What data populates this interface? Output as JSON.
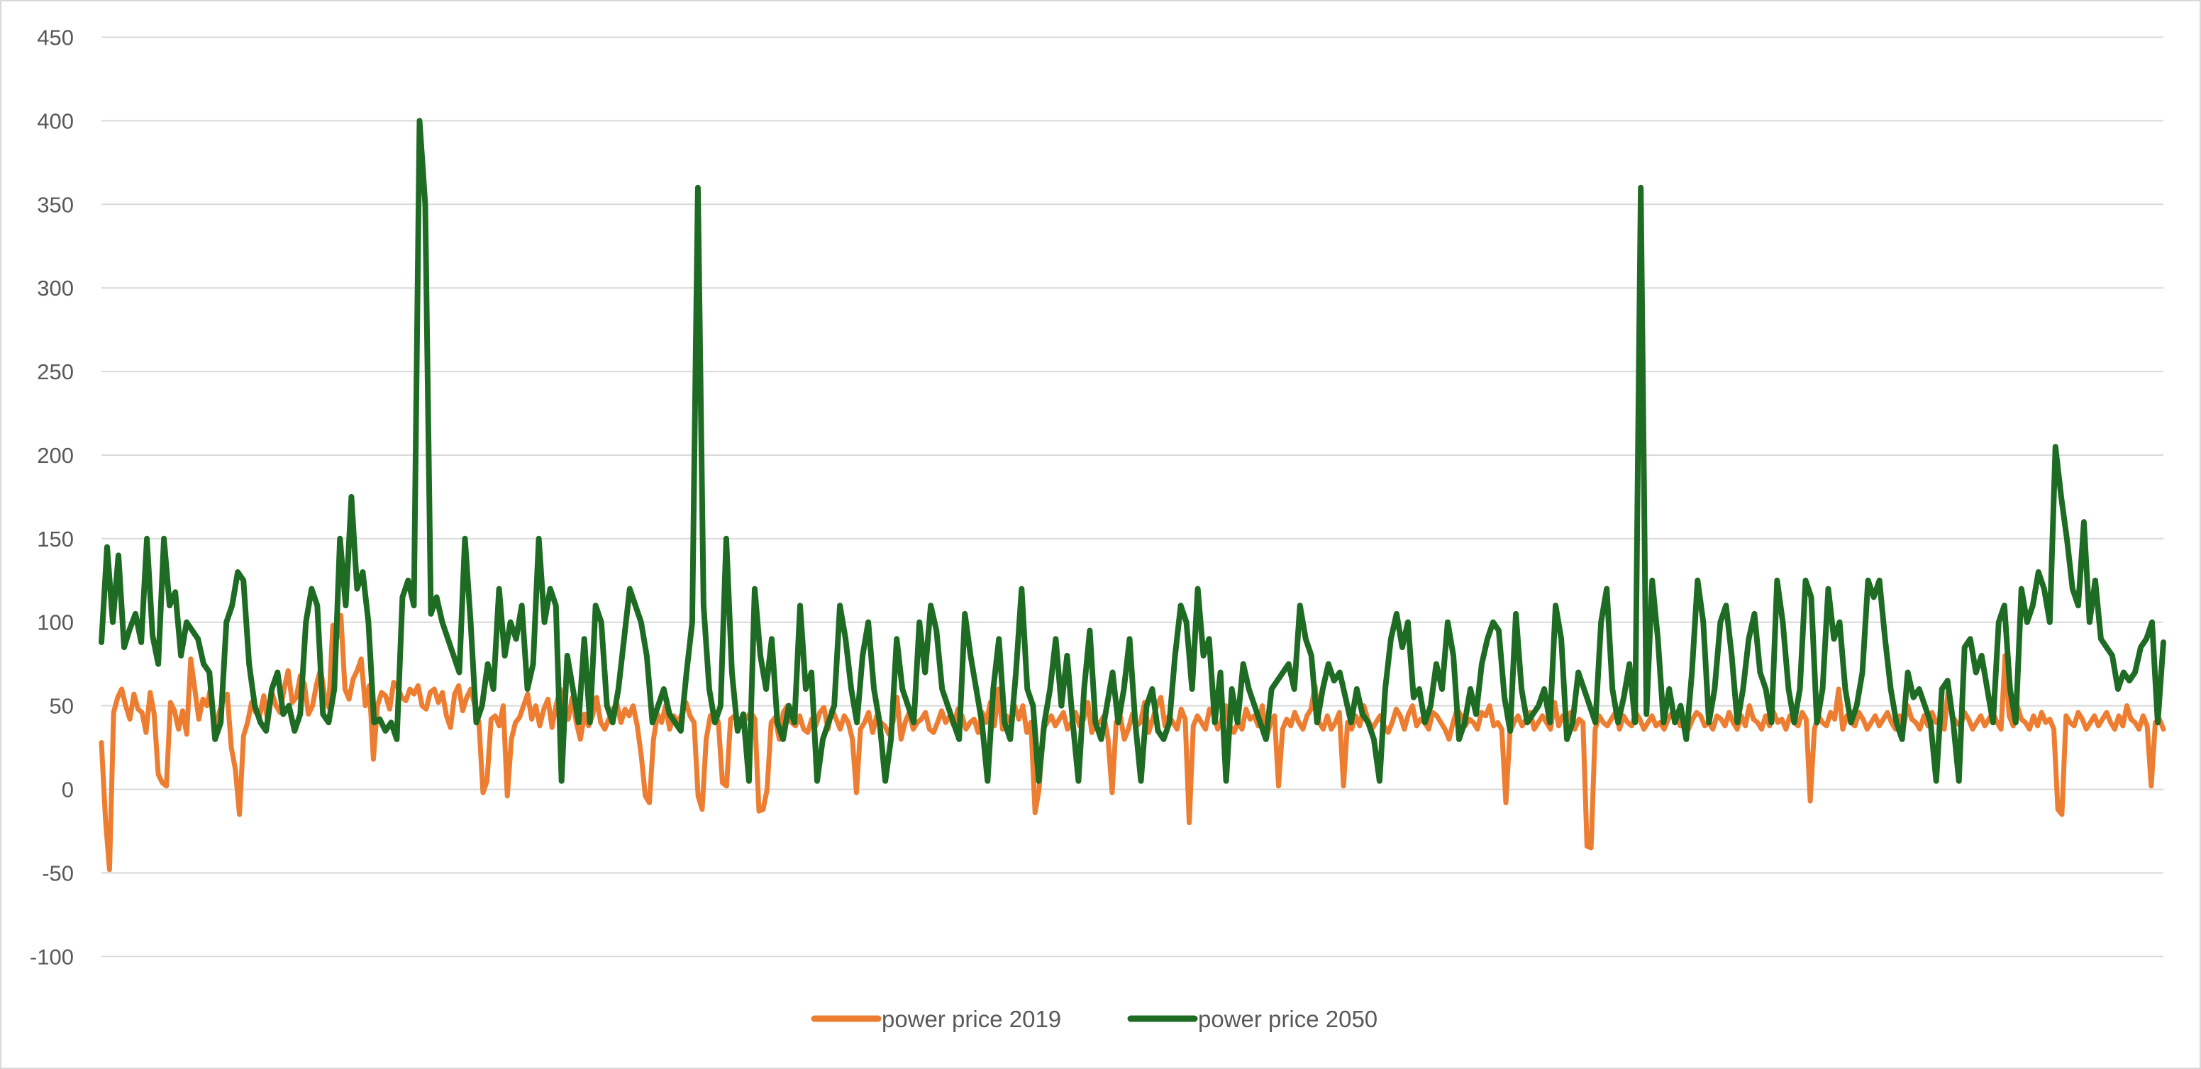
{
  "chart_data": {
    "type": "line",
    "title": "",
    "xlabel": "",
    "ylabel": "",
    "ylim": [
      -100,
      450
    ],
    "yticks": [
      -100,
      -50,
      0,
      50,
      100,
      150,
      200,
      250,
      300,
      350,
      400,
      450
    ],
    "grid": true,
    "legend_position": "bottom",
    "colors": {
      "power_price_2019": "#ed7d31",
      "power_price_2050": "#1e6b24"
    },
    "series": [
      {
        "name": "power price 2019",
        "color": "#ed7d31",
        "values": [
          28,
          -18,
          -48,
          46,
          55,
          60,
          50,
          42,
          57,
          48,
          46,
          34,
          58,
          45,
          9,
          4,
          2,
          52,
          47,
          36,
          47,
          33,
          78,
          60,
          42,
          54,
          50,
          62,
          32,
          46,
          53,
          57,
          25,
          12,
          -15,
          32,
          40,
          52,
          46,
          44,
          56,
          40,
          58,
          50,
          46,
          60,
          71,
          52,
          55,
          68,
          63,
          45,
          50,
          63,
          72,
          56,
          49,
          98,
          90,
          104,
          60,
          54,
          66,
          71,
          78,
          50,
          62,
          18,
          50,
          58,
          56,
          48,
          64,
          61,
          55,
          53,
          60,
          57,
          62,
          50,
          48,
          58,
          60,
          52,
          58,
          44,
          37,
          57,
          62,
          47,
          55,
          60,
          50,
          40,
          -2,
          5,
          42,
          44,
          38,
          50,
          -4,
          30,
          40,
          43,
          50,
          57,
          42,
          50,
          38,
          48,
          54,
          37,
          50,
          60,
          46,
          42,
          55,
          40,
          30,
          45,
          38,
          44,
          55,
          40,
          36,
          42,
          48,
          51,
          40,
          48,
          44,
          50,
          38,
          20,
          -4,
          -8,
          30,
          45,
          40,
          50,
          36,
          44,
          40,
          45,
          52,
          44,
          40,
          -4,
          -12,
          30,
          44,
          46,
          40,
          4,
          2,
          42,
          44,
          38,
          40,
          43,
          46,
          42,
          -13,
          -12,
          0,
          40,
          43,
          30,
          46,
          50,
          40,
          38,
          44,
          36,
          34,
          42,
          38,
          46,
          49,
          36,
          48,
          42,
          36,
          44,
          40,
          30,
          -2,
          36,
          40,
          46,
          34,
          44,
          40,
          38,
          33,
          40,
          55,
          30,
          40,
          46,
          36,
          40,
          42,
          46,
          36,
          34,
          40,
          47,
          40,
          44,
          38,
          48,
          44,
          36,
          40,
          42,
          34,
          46,
          40,
          52,
          38,
          60,
          36,
          44,
          40,
          50,
          42,
          50,
          34,
          40,
          -14,
          0,
          36,
          40,
          44,
          38,
          42,
          46,
          36,
          40,
          46,
          38,
          42,
          52,
          34,
          40,
          40,
          44,
          30,
          -2,
          40,
          44,
          30,
          36,
          45,
          38,
          40,
          52,
          34,
          42,
          50,
          55,
          38,
          44,
          40,
          36,
          48,
          42,
          -20,
          38,
          44,
          40,
          36,
          48,
          45,
          36,
          42,
          50,
          38,
          34,
          40,
          36,
          48,
          42,
          44,
          38,
          50,
          30,
          40,
          44,
          2,
          36,
          42,
          38,
          46,
          40,
          36,
          44,
          48,
          62,
          40,
          36,
          44,
          36,
          40,
          46,
          2,
          40,
          36,
          44,
          38,
          50,
          42,
          36,
          40,
          44,
          38,
          34,
          40,
          48,
          44,
          36,
          45,
          50,
          38,
          42,
          40,
          36,
          46,
          44,
          40,
          36,
          30,
          40,
          48,
          44,
          38,
          42,
          40,
          36,
          46,
          44,
          50,
          38,
          40,
          36,
          -8,
          34,
          40,
          44,
          38,
          42,
          46,
          36,
          40,
          44,
          40,
          36,
          52,
          38,
          44,
          40,
          46,
          36,
          42,
          40,
          -34,
          -35,
          36,
          44,
          40,
          38,
          42,
          46,
          36,
          44,
          40,
          38,
          46,
          42,
          36,
          40,
          44,
          38,
          40,
          36,
          42,
          46,
          44,
          38,
          40,
          36,
          42,
          46,
          44,
          38,
          40,
          36,
          44,
          42,
          38,
          46,
          40,
          36,
          44,
          38,
          50,
          42,
          40,
          36,
          44,
          38,
          46,
          40,
          42,
          36,
          44,
          40,
          38,
          46,
          42,
          -7,
          36,
          44,
          40,
          38,
          46,
          42,
          60,
          36,
          44,
          40,
          38,
          46,
          42,
          36,
          40,
          44,
          38,
          42,
          46,
          40,
          36,
          44,
          38,
          50,
          42,
          40,
          36,
          44,
          38,
          46,
          40,
          42,
          36,
          60,
          44,
          40,
          38,
          46,
          42,
          36,
          40,
          44,
          38,
          42,
          46,
          40,
          36,
          80,
          44,
          38,
          50,
          42,
          40,
          36,
          44,
          38,
          46,
          40,
          42,
          36,
          -12,
          -15,
          44,
          40,
          38,
          46,
          42,
          36,
          40,
          44,
          38,
          42,
          46,
          40,
          36,
          44,
          38,
          50,
          42,
          40,
          36,
          44,
          38,
          2,
          40,
          42,
          36
        ]
      },
      {
        "name": "power price 2050",
        "color": "#1e6b24",
        "values": [
          88,
          145,
          100,
          140,
          85,
          96,
          105,
          88,
          150,
          92,
          75,
          150,
          110,
          118,
          80,
          100,
          95,
          90,
          75,
          70,
          30,
          40,
          100,
          110,
          130,
          125,
          75,
          50,
          40,
          35,
          60,
          70,
          45,
          50,
          35,
          45,
          100,
          120,
          110,
          45,
          40,
          60,
          150,
          110,
          175,
          120,
          130,
          100,
          40,
          42,
          35,
          40,
          30,
          115,
          125,
          110,
          400,
          350,
          105,
          115,
          100,
          90,
          80,
          70,
          150,
          100,
          40,
          50,
          75,
          60,
          120,
          80,
          100,
          90,
          110,
          60,
          75,
          150,
          100,
          120,
          110,
          5,
          80,
          60,
          40,
          90,
          40,
          110,
          100,
          50,
          40,
          60,
          90,
          120,
          110,
          100,
          80,
          40,
          50,
          60,
          45,
          40,
          35,
          70,
          100,
          360,
          110,
          60,
          40,
          50,
          150,
          70,
          35,
          45,
          5,
          120,
          80,
          60,
          90,
          40,
          30,
          50,
          40,
          110,
          60,
          70,
          5,
          30,
          40,
          50,
          110,
          90,
          60,
          40,
          80,
          100,
          60,
          40,
          5,
          30,
          90,
          60,
          50,
          40,
          100,
          70,
          110,
          95,
          60,
          50,
          40,
          30,
          105,
          80,
          60,
          40,
          5,
          60,
          90,
          40,
          30,
          70,
          120,
          60,
          50,
          5,
          40,
          60,
          90,
          50,
          80,
          40,
          5,
          60,
          95,
          40,
          30,
          50,
          70,
          40,
          60,
          90,
          40,
          5,
          50,
          60,
          35,
          30,
          40,
          80,
          110,
          100,
          60,
          120,
          80,
          90,
          40,
          70,
          5,
          60,
          40,
          75,
          60,
          50,
          40,
          30,
          60,
          65,
          70,
          75,
          60,
          110,
          90,
          80,
          40,
          60,
          75,
          65,
          70,
          55,
          40,
          60,
          45,
          40,
          30,
          5,
          60,
          90,
          105,
          85,
          100,
          55,
          60,
          40,
          50,
          75,
          60,
          100,
          80,
          30,
          40,
          60,
          45,
          75,
          90,
          100,
          95,
          55,
          35,
          105,
          60,
          40,
          45,
          50,
          60,
          40,
          110,
          90,
          30,
          40,
          70,
          60,
          50,
          40,
          100,
          120,
          60,
          40,
          55,
          75,
          40,
          360,
          45,
          125,
          90,
          40,
          60,
          40,
          50,
          30,
          70,
          125,
          100,
          40,
          60,
          100,
          110,
          80,
          40,
          60,
          90,
          105,
          70,
          60,
          40,
          125,
          100,
          60,
          40,
          60,
          125,
          115,
          40,
          60,
          120,
          90,
          100,
          60,
          40,
          50,
          70,
          125,
          115,
          125,
          90,
          60,
          40,
          30,
          70,
          55,
          60,
          50,
          40,
          5,
          60,
          65,
          40,
          5,
          85,
          90,
          70,
          80,
          60,
          40,
          100,
          110,
          60,
          40,
          120,
          100,
          110,
          130,
          120,
          100,
          205,
          175,
          150,
          120,
          110,
          160,
          100,
          125,
          90,
          85,
          80,
          60,
          70,
          65,
          70,
          85,
          90,
          100,
          40,
          88
        ]
      }
    ]
  }
}
